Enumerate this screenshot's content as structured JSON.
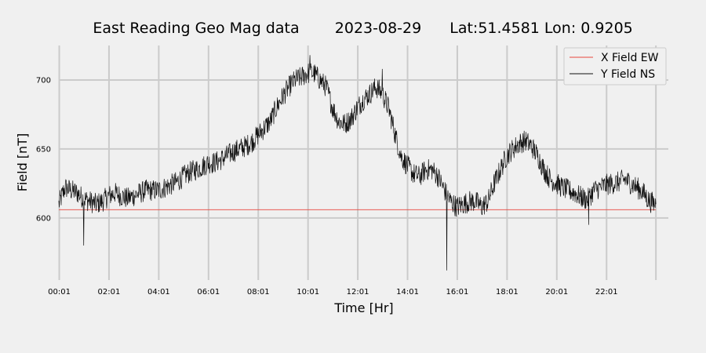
{
  "chart_data": {
    "type": "line",
    "title_parts": [
      "East Reading Geo Mag data",
      "2023-08-29",
      "Lat:51.4581  Lon: 0.9205"
    ],
    "xlabel": "Time  [Hr]",
    "ylabel": "Field  [nT]",
    "xlim": [
      0.0,
      24.5
    ],
    "ylim": [
      555,
      725
    ],
    "x_ticks": [
      0.0167,
      2.0167,
      4.0167,
      6.0167,
      8.0167,
      10.0167,
      12.0167,
      14.0167,
      16.0167,
      18.0167,
      20.0167,
      22.0167
    ],
    "x_tick_labels": [
      "00:01",
      "02:01",
      "04:01",
      "06:01",
      "08:01",
      "10:01",
      "12:01",
      "14:01",
      "16:01",
      "18:01",
      "20:01",
      "22:01"
    ],
    "extra_gridline_x": [
      24.0
    ],
    "y_ticks": [
      600,
      650,
      700
    ],
    "grid": true,
    "legend_position": "top-right",
    "series": [
      {
        "name": "X Field EW",
        "color": "#e8463c",
        "x": [
          0.0,
          24.0
        ],
        "y": [
          606,
          606
        ]
      },
      {
        "name": "Y Field NS",
        "color": "#111111",
        "x": [
          0.0,
          0.25,
          0.5,
          0.75,
          1.0,
          1.25,
          1.5,
          1.75,
          2.0,
          2.25,
          2.5,
          2.75,
          3.0,
          3.25,
          3.5,
          3.75,
          4.0,
          4.25,
          4.5,
          4.75,
          5.0,
          5.25,
          5.5,
          5.75,
          6.0,
          6.25,
          6.5,
          6.75,
          7.0,
          7.25,
          7.5,
          7.75,
          8.0,
          8.25,
          8.5,
          8.75,
          9.0,
          9.25,
          9.5,
          9.75,
          10.0,
          10.25,
          10.5,
          10.75,
          11.0,
          11.25,
          11.5,
          11.75,
          12.0,
          12.25,
          12.5,
          12.75,
          13.0,
          13.25,
          13.5,
          13.75,
          14.0,
          14.25,
          14.5,
          14.75,
          15.0,
          15.25,
          15.5,
          15.75,
          16.0,
          16.25,
          16.5,
          16.75,
          17.0,
          17.25,
          17.5,
          17.75,
          18.0,
          18.25,
          18.5,
          18.75,
          19.0,
          19.25,
          19.5,
          19.75,
          20.0,
          20.25,
          20.5,
          20.75,
          21.0,
          21.25,
          21.5,
          21.75,
          22.0,
          22.25,
          22.5,
          22.75,
          23.0,
          23.25,
          23.5,
          23.75,
          24.0
        ],
        "y": [
          610,
          622,
          620,
          618,
          614,
          612,
          610,
          612,
          616,
          618,
          616,
          614,
          616,
          618,
          620,
          620,
          620,
          622,
          624,
          626,
          630,
          633,
          635,
          637,
          640,
          640,
          642,
          645,
          648,
          650,
          652,
          655,
          660,
          665,
          670,
          680,
          688,
          695,
          700,
          702,
          705,
          705,
          700,
          695,
          680,
          670,
          668,
          672,
          680,
          686,
          690,
          695,
          690,
          680,
          662,
          645,
          638,
          632,
          630,
          635,
          635,
          630,
          620,
          612,
          608,
          610,
          612,
          612,
          608,
          612,
          625,
          635,
          645,
          650,
          654,
          656,
          652,
          645,
          635,
          628,
          625,
          622,
          620,
          618,
          615,
          613,
          620,
          622,
          624,
          625,
          626,
          628,
          625,
          622,
          618,
          612,
          610
        ],
        "spikes": [
          {
            "x": 1.0,
            "y": 580
          },
          {
            "x": 15.6,
            "y": 562
          },
          {
            "x": 21.3,
            "y": 595
          },
          {
            "x": 10.1,
            "y": 718
          },
          {
            "x": 13.0,
            "y": 708
          }
        ]
      }
    ]
  }
}
